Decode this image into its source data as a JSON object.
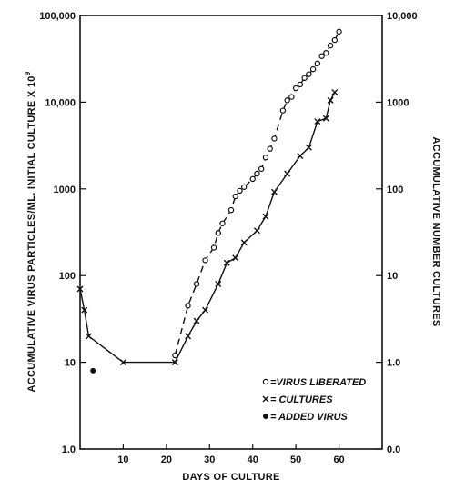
{
  "chart_data": {
    "type": "scatter",
    "xlabel": "DAYS OF CULTURE",
    "ylabel_left": "ACCUMULATIVE VIRUS PARTICLES/ML. INITIAL CULTURE X 10",
    "ylabel_left_exponent": "9",
    "ylabel_right": "ACCUMULATIVE NUMBER CULTURES",
    "xlim": [
      0,
      70
    ],
    "x_ticks": [
      10,
      20,
      30,
      40,
      50,
      60
    ],
    "x_tick_labels": [
      "10",
      "20",
      "30",
      "40",
      "50",
      "60"
    ],
    "y_left_scale": "log",
    "y_left_lim": [
      1,
      100000
    ],
    "y_left_ticks": [
      1,
      10,
      100,
      1000,
      10000,
      100000
    ],
    "y_left_tick_labels": [
      "1.0",
      "10",
      "100",
      "1000",
      "10,000",
      "100,000"
    ],
    "y_right_scale": "log",
    "y_right_lim": [
      0.1,
      10000
    ],
    "y_right_ticks": [
      0.1,
      1,
      10,
      100,
      1000,
      10000
    ],
    "y_right_tick_labels": [
      "0.0",
      "1.0",
      "10",
      "100",
      "1000",
      "10,000"
    ],
    "series": [
      {
        "name": "VIRUS LIBERATED",
        "marker": "o",
        "line": "dashed",
        "axis": "left",
        "x": [
          22,
          25,
          27,
          29,
          31,
          32,
          33,
          35,
          36,
          37,
          38,
          40,
          41,
          42,
          43,
          44,
          45,
          47,
          48,
          49,
          50,
          51,
          52,
          53,
          54,
          55,
          56,
          57,
          58,
          59,
          60
        ],
        "y": [
          12,
          45,
          80,
          150,
          210,
          310,
          400,
          570,
          820,
          950,
          1050,
          1300,
          1500,
          1700,
          2300,
          2900,
          3800,
          8000,
          10500,
          11500,
          14500,
          16000,
          19000,
          21000,
          24000,
          28000,
          34000,
          37000,
          45000,
          52000,
          65000
        ]
      },
      {
        "name": "CULTURES",
        "marker": "x",
        "line": "solid",
        "axis": "left",
        "x": [
          0,
          1,
          2,
          10,
          22,
          25,
          27,
          29,
          32,
          34,
          36,
          38,
          41,
          43,
          45,
          48,
          51,
          53,
          55,
          57,
          58,
          59
        ],
        "y": [
          70,
          40,
          20,
          10,
          10,
          20,
          30,
          40,
          80,
          140,
          160,
          240,
          330,
          480,
          920,
          1500,
          2400,
          3000,
          6000,
          6500,
          10500,
          13000
        ]
      },
      {
        "name": "ADDED VIRUS",
        "marker": "dot",
        "line": "none",
        "axis": "left",
        "x": [
          3
        ],
        "y": [
          8
        ]
      }
    ],
    "legend": {
      "placement": "bottom-right",
      "entries": [
        {
          "symbol": "o",
          "label": "=VIRUS LIBERATED"
        },
        {
          "symbol": "x",
          "label": "= CULTURES"
        },
        {
          "symbol": "dot",
          "label": "= ADDED VIRUS"
        }
      ]
    }
  }
}
